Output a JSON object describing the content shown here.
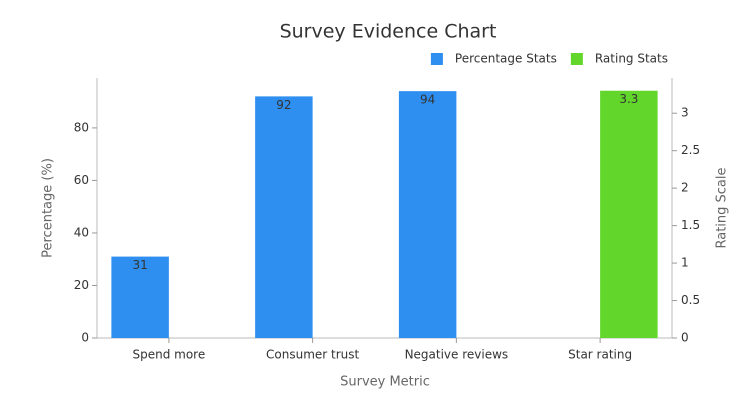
{
  "chart_data": {
    "type": "bar",
    "title": "Survey Evidence Chart",
    "x_label": "Survey Metric",
    "y_label": "Percentage (%)",
    "y2_label": "Rating Scale",
    "categories": [
      "Spend more",
      "Consumer trust",
      "Negative reviews",
      "Star rating"
    ],
    "series": [
      {
        "name": "Percentage Stats",
        "color": "#2e8ff0",
        "values": [
          31,
          92,
          94,
          null
        ]
      },
      {
        "name": "Rating Stats",
        "color": "#62d62a",
        "axis": "y2",
        "values": [
          null,
          null,
          null,
          3.3
        ]
      }
    ],
    "ylim": [
      0,
      99
    ],
    "yticks": [
      0,
      20,
      40,
      60,
      80
    ],
    "y2lim": [
      0,
      3.47
    ],
    "y2ticks": [
      0,
      0.5,
      1,
      1.5,
      2,
      2.5,
      3
    ],
    "legend": "upper right",
    "grid": false
  }
}
